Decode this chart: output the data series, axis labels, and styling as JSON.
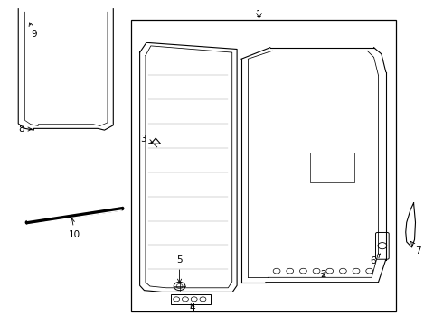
{
  "background_color": "#ffffff",
  "line_color": "#000000",
  "label_color": "#000000",
  "fig_width": 4.9,
  "fig_height": 3.6,
  "dpi": 100
}
